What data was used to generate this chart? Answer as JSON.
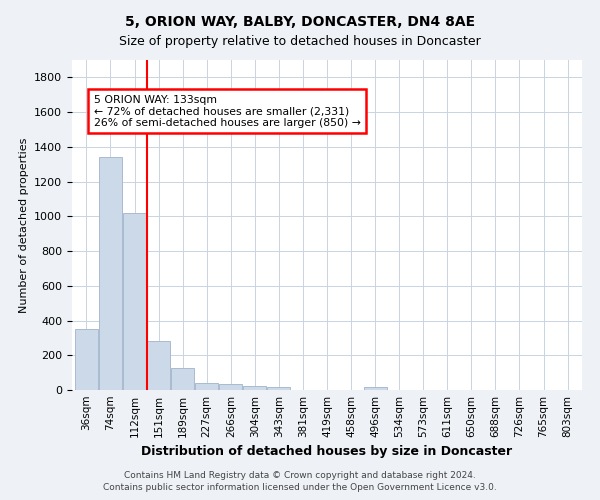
{
  "title1": "5, ORION WAY, BALBY, DONCASTER, DN4 8AE",
  "title2": "Size of property relative to detached houses in Doncaster",
  "xlabel": "Distribution of detached houses by size in Doncaster",
  "ylabel": "Number of detached properties",
  "categories": [
    "36sqm",
    "74sqm",
    "112sqm",
    "151sqm",
    "189sqm",
    "227sqm",
    "266sqm",
    "304sqm",
    "343sqm",
    "381sqm",
    "419sqm",
    "458sqm",
    "496sqm",
    "534sqm",
    "573sqm",
    "611sqm",
    "650sqm",
    "688sqm",
    "726sqm",
    "765sqm",
    "803sqm"
  ],
  "values": [
    350,
    1340,
    1020,
    285,
    125,
    38,
    32,
    24,
    18,
    0,
    0,
    0,
    18,
    0,
    0,
    0,
    0,
    0,
    0,
    0,
    0
  ],
  "bar_color": "#ccd9e8",
  "bar_edge_color": "#aabbd0",
  "vline_x": 2.5,
  "vline_color": "red",
  "annotation_line1": "5 ORION WAY: 133sqm",
  "annotation_line2": "← 72% of detached houses are smaller (2,331)",
  "annotation_line3": "26% of semi-detached houses are larger (850) →",
  "annotation_box_color": "white",
  "annotation_box_edge": "red",
  "ylim": [
    0,
    1900
  ],
  "yticks": [
    0,
    200,
    400,
    600,
    800,
    1000,
    1200,
    1400,
    1600,
    1800
  ],
  "footer1": "Contains HM Land Registry data © Crown copyright and database right 2024.",
  "footer2": "Contains public sector information licensed under the Open Government Licence v3.0.",
  "bg_color": "#eef2f7",
  "plot_bg_color": "white",
  "grid_color": "#c8d4e0"
}
